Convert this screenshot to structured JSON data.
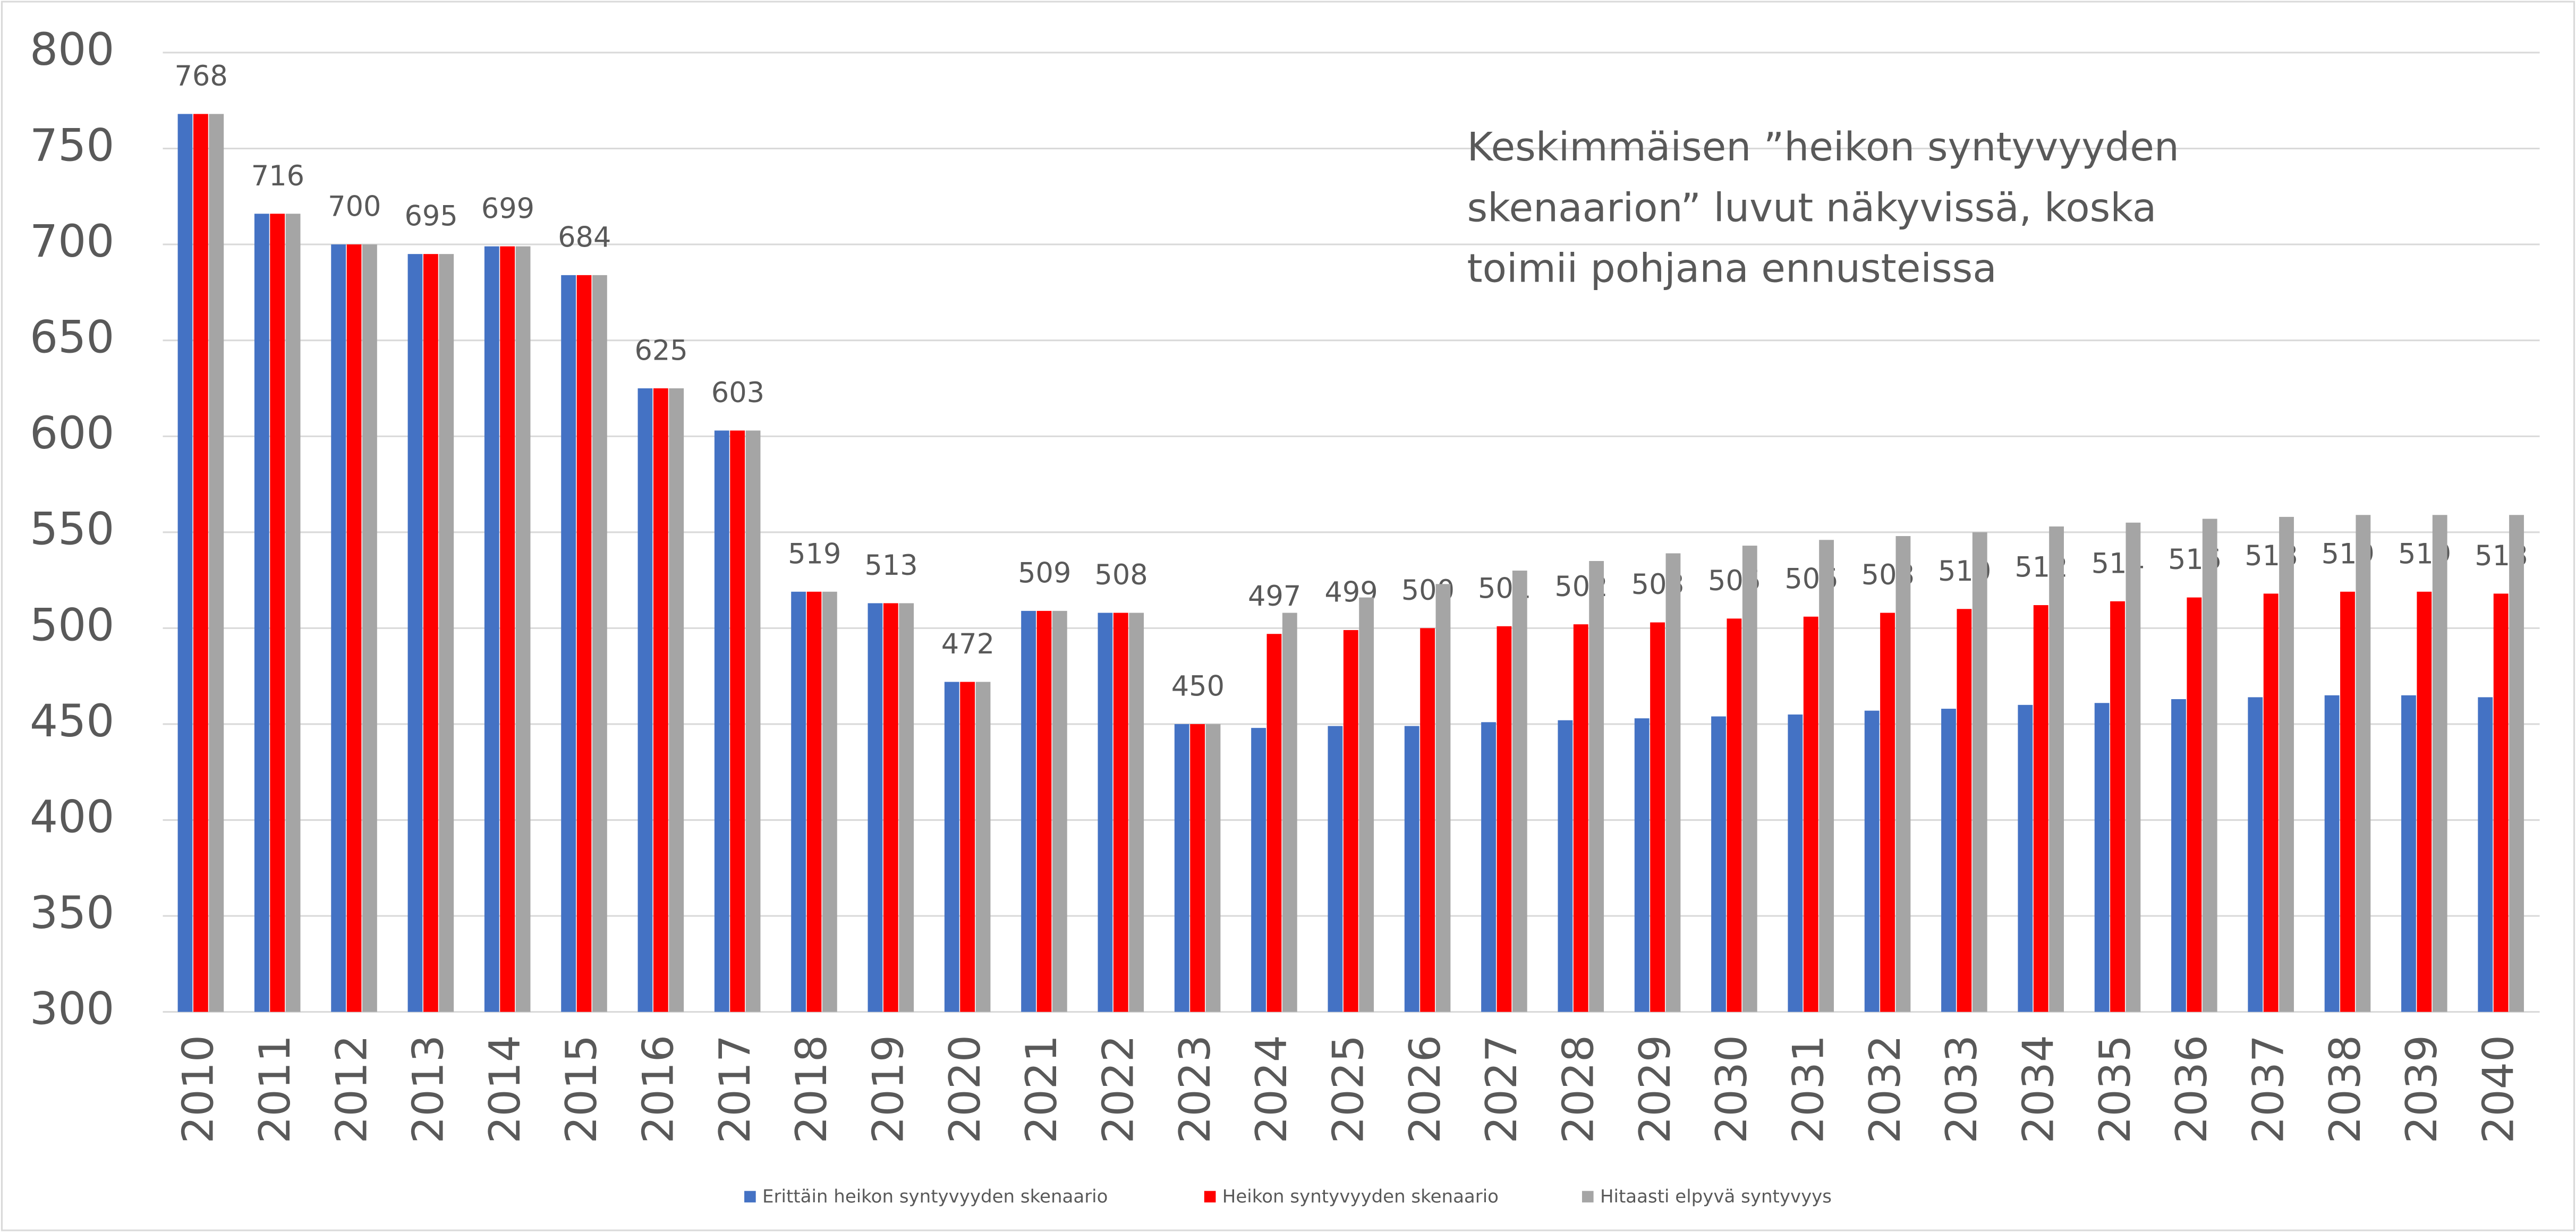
{
  "chart_data": {
    "type": "bar",
    "annotation": [
      "Keskimmäisen ”heikon syntyvyyden",
      "skenaarion” luvut näkyvissä, koska",
      "toimii pohjana ennusteissa"
    ],
    "categories": [
      "2010",
      "2011",
      "2012",
      "2013",
      "2014",
      "2015",
      "2016",
      "2017",
      "2018",
      "2019",
      "2020",
      "2021",
      "2022",
      "2023",
      "2024",
      "2025",
      "2026",
      "2027",
      "2028",
      "2029",
      "2030",
      "2031",
      "2032",
      "2033",
      "2034",
      "2035",
      "2036",
      "2037",
      "2038",
      "2039",
      "2040"
    ],
    "series": [
      {
        "name": "Erittäin heikon syntyvyyden skenaario",
        "color": "#4472c4",
        "values": [
          768,
          716,
          700,
          695,
          699,
          684,
          625,
          603,
          519,
          513,
          472,
          509,
          508,
          450,
          448,
          449,
          449,
          451,
          452,
          453,
          454,
          455,
          457,
          458,
          460,
          461,
          463,
          464,
          465,
          465,
          464
        ]
      },
      {
        "name": "Heikon syntyvyyden skenaario",
        "color": "#ff0000",
        "data_labels": true,
        "values": [
          768,
          716,
          700,
          695,
          699,
          684,
          625,
          603,
          519,
          513,
          472,
          509,
          508,
          450,
          497,
          499,
          500,
          501,
          502,
          503,
          505,
          506,
          508,
          510,
          512,
          514,
          516,
          518,
          519,
          519,
          518
        ]
      },
      {
        "name": "Hitaasti elpyvä syntyvyys",
        "color": "#a5a5a5",
        "values": [
          768,
          716,
          700,
          695,
          699,
          684,
          625,
          603,
          519,
          513,
          472,
          509,
          508,
          450,
          508,
          516,
          523,
          530,
          535,
          539,
          543,
          546,
          548,
          550,
          553,
          555,
          557,
          558,
          559,
          559,
          559
        ]
      }
    ],
    "ylim": [
      300,
      800
    ],
    "yticks": [
      300,
      350,
      400,
      450,
      500,
      550,
      600,
      650,
      700,
      750,
      800
    ],
    "grid": true,
    "legend": "bottom"
  }
}
